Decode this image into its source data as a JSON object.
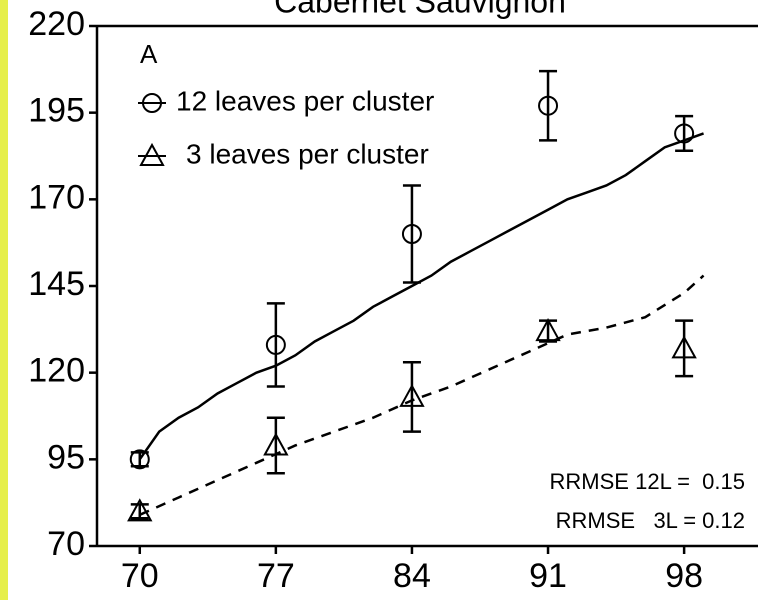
{
  "chart_data": {
    "type": "scatter",
    "title": "Cabernet Sauvignon",
    "panel_label": "A",
    "xlim": [
      67.8,
      101.8
    ],
    "xticks": [
      70,
      77,
      84,
      91,
      98
    ],
    "ylim": [
      70,
      220
    ],
    "yticks": [
      70,
      95,
      120,
      145,
      170,
      195,
      220
    ],
    "series": [
      {
        "name": "12 leaves per cluster",
        "marker": "circle",
        "color": "#000000",
        "x": [
          70,
          77,
          84,
          91,
          98
        ],
        "values": [
          95,
          128,
          160,
          197,
          189
        ],
        "errors": [
          2,
          12,
          14,
          10,
          5
        ]
      },
      {
        "name": "3 leaves per cluster",
        "marker": "triangle",
        "color": "#000000",
        "x": [
          70,
          77,
          84,
          91,
          98
        ],
        "values": [
          80,
          99,
          113,
          132,
          127
        ],
        "errors": [
          2,
          8,
          10,
          3,
          8
        ]
      }
    ],
    "model_lines": [
      {
        "style": "solid",
        "color": "#000000",
        "x": [
          70,
          71,
          72,
          73,
          74,
          75,
          76,
          77,
          78,
          79,
          80,
          81,
          82,
          83,
          84,
          85,
          86,
          87,
          88,
          89,
          90,
          91,
          92,
          93,
          94,
          95,
          96,
          97,
          98,
          99
        ],
        "values": [
          95,
          103,
          107,
          110,
          114,
          117,
          120,
          122,
          125,
          129,
          132,
          135,
          139,
          142,
          145,
          148,
          152,
          155,
          158,
          161,
          164,
          167,
          170,
          172,
          174,
          177,
          181,
          185,
          187,
          189
        ]
      },
      {
        "style": "dashed",
        "color": "#000000",
        "x": [
          70,
          72,
          74,
          76,
          78,
          80,
          82,
          84,
          86,
          88,
          90,
          92,
          94,
          96,
          98,
          99
        ],
        "values": [
          79,
          84,
          89,
          94,
          99,
          103,
          107,
          112,
          116,
          121,
          126,
          131,
          133,
          136,
          143,
          148
        ]
      }
    ],
    "annotations": [
      "RRMSE 12L =  0.15",
      "RRMSE   3L = 0.12"
    ]
  }
}
